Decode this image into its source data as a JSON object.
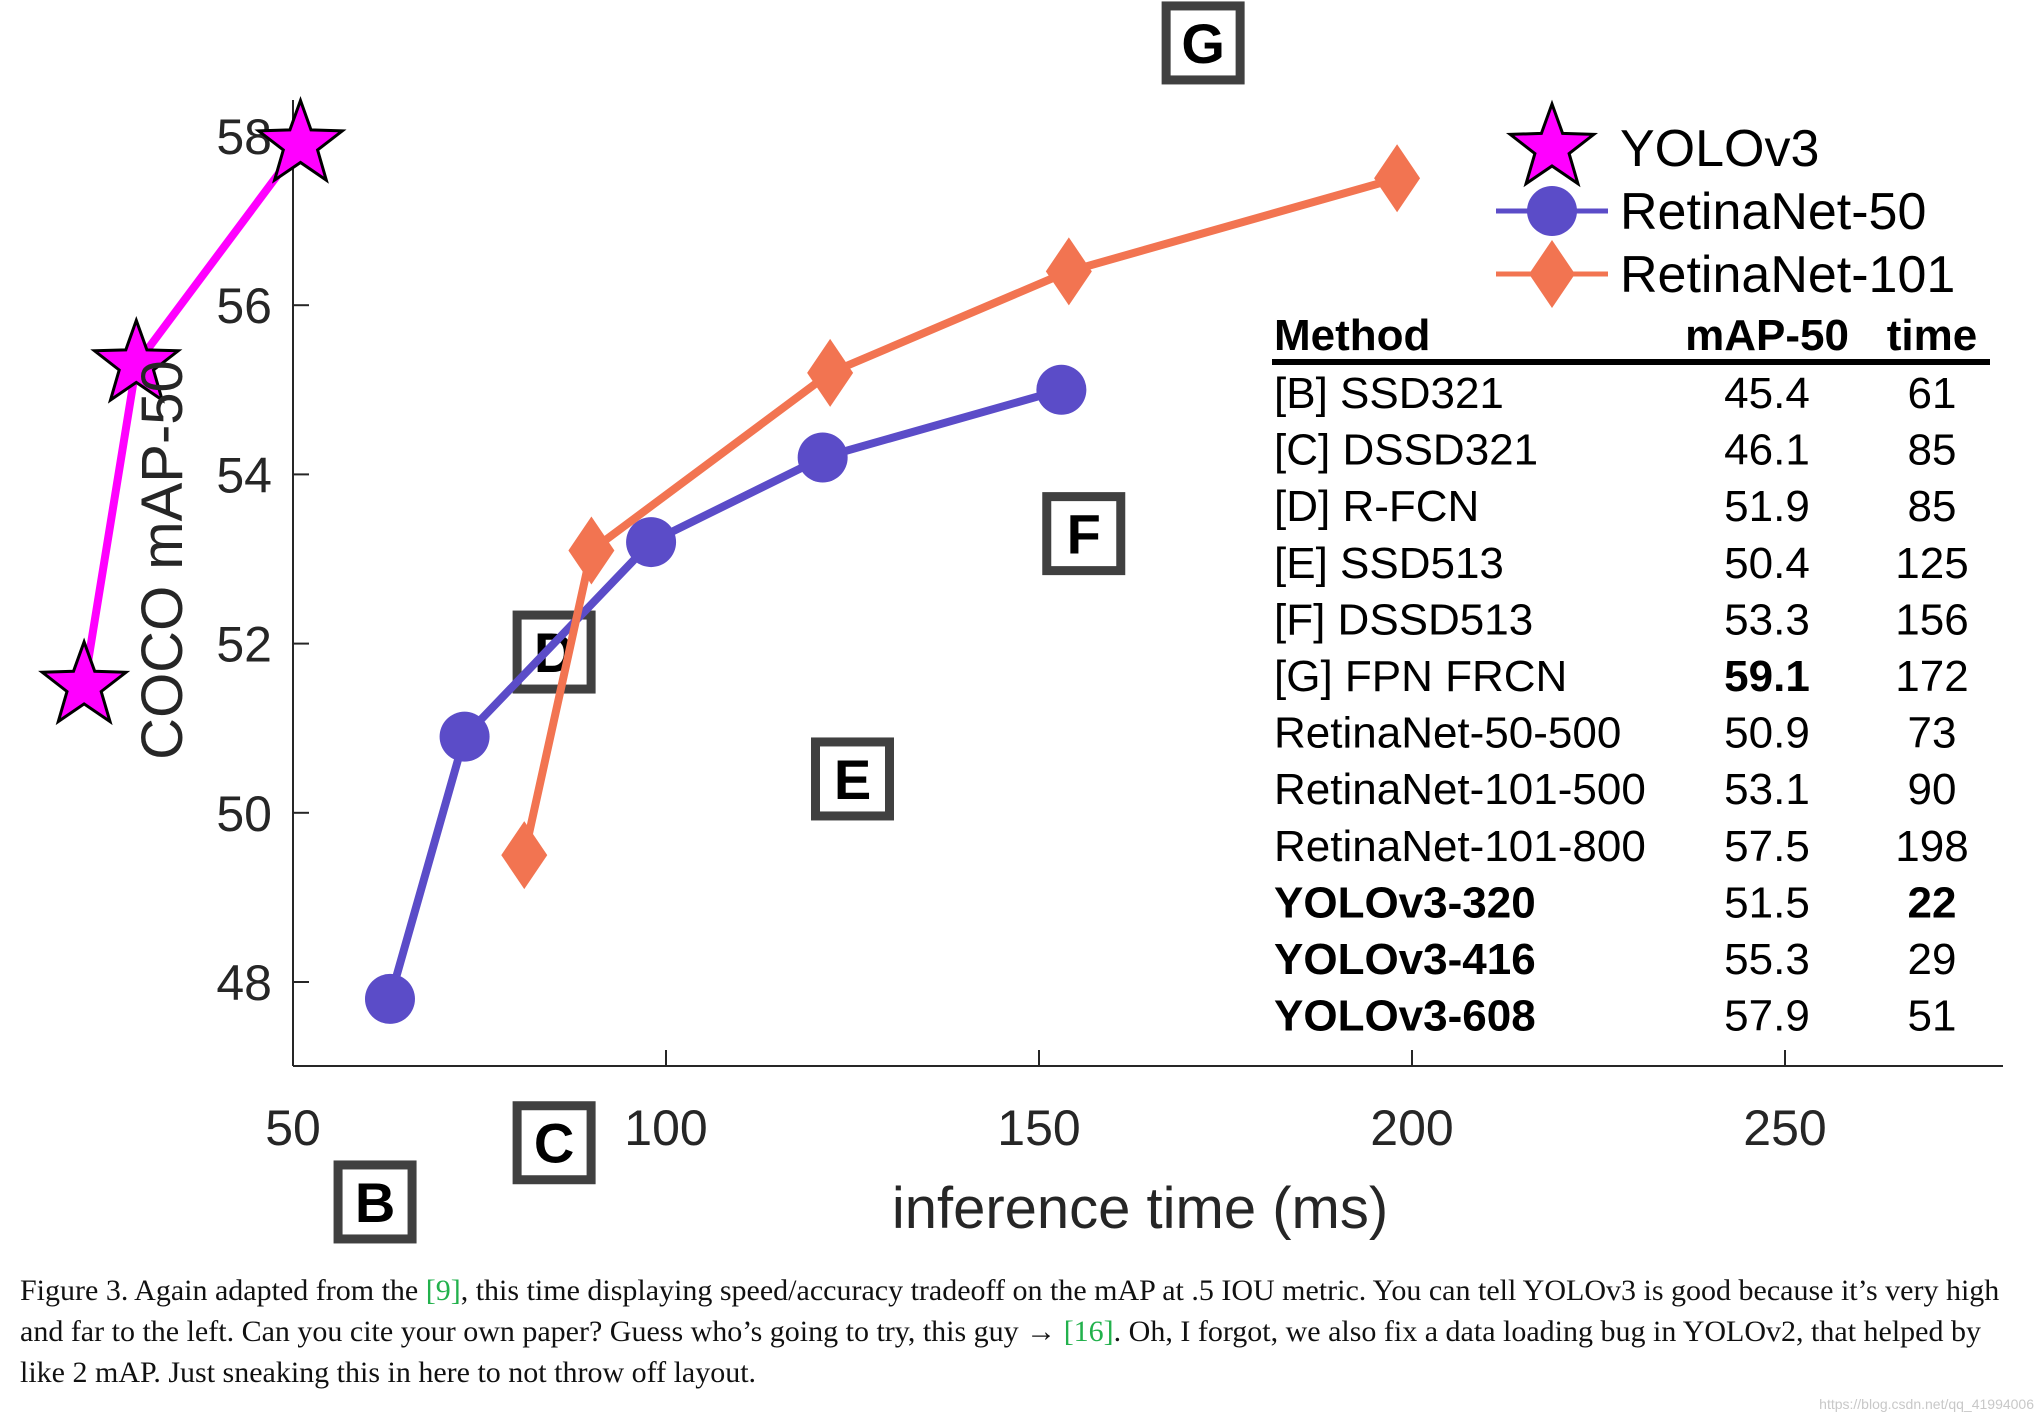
{
  "chart_data": {
    "type": "line",
    "xlabel": "inference time (ms)",
    "ylabel": "COCO mAP-50",
    "xlim": [
      50,
      280
    ],
    "ylim": [
      47,
      59
    ],
    "xticks": [
      50,
      100,
      150,
      200,
      250
    ],
    "yticks": [
      48,
      50,
      52,
      54,
      56,
      58
    ],
    "grid": false,
    "legend_position": "top-right",
    "series": [
      {
        "name": "YOLOv3",
        "marker": "star",
        "color": "#ff00ff",
        "points": [
          {
            "x": 22,
            "y": 51.5
          },
          {
            "x": 29,
            "y": 55.3
          },
          {
            "x": 51,
            "y": 57.9
          }
        ]
      },
      {
        "name": "RetinaNet-50",
        "marker": "circle",
        "color": "#5b4cc8",
        "points": [
          {
            "x": 63,
            "y": 47.8
          },
          {
            "x": 73,
            "y": 50.9
          },
          {
            "x": 98,
            "y": 53.2
          },
          {
            "x": 121,
            "y": 54.2
          },
          {
            "x": 153,
            "y": 55.0
          }
        ]
      },
      {
        "name": "RetinaNet-101",
        "marker": "diamond",
        "color": "#f27451",
        "points": [
          {
            "x": 81,
            "y": 49.5
          },
          {
            "x": 90,
            "y": 53.1
          },
          {
            "x": 122,
            "y": 55.2
          },
          {
            "x": 154,
            "y": 56.4
          },
          {
            "x": 198,
            "y": 57.5
          }
        ]
      }
    ],
    "box_markers": [
      {
        "label": "B",
        "x": 61,
        "y": 45.4
      },
      {
        "label": "C",
        "x": 85,
        "y": 46.1
      },
      {
        "label": "D",
        "x": 85,
        "y": 51.9
      },
      {
        "label": "E",
        "x": 125,
        "y": 50.4
      },
      {
        "label": "F",
        "x": 156,
        "y": 53.3
      },
      {
        "label": "G",
        "x": 172,
        "y": 59.1
      }
    ],
    "table": {
      "headers": [
        "Method",
        "mAP-50",
        "time"
      ],
      "rows": [
        {
          "method": "[B] SSD321",
          "map": "45.4",
          "time": "61",
          "bold_method": false,
          "bold_map": false,
          "bold_time": false
        },
        {
          "method": "[C] DSSD321",
          "map": "46.1",
          "time": "85",
          "bold_method": false,
          "bold_map": false,
          "bold_time": false
        },
        {
          "method": "[D] R-FCN",
          "map": "51.9",
          "time": "85",
          "bold_method": false,
          "bold_map": false,
          "bold_time": false
        },
        {
          "method": "[E] SSD513",
          "map": "50.4",
          "time": "125",
          "bold_method": false,
          "bold_map": false,
          "bold_time": false
        },
        {
          "method": "[F] DSSD513",
          "map": "53.3",
          "time": "156",
          "bold_method": false,
          "bold_map": false,
          "bold_time": false
        },
        {
          "method": "[G] FPN FRCN",
          "map": "59.1",
          "time": "172",
          "bold_method": false,
          "bold_map": true,
          "bold_time": false
        },
        {
          "method": "RetinaNet-50-500",
          "map": "50.9",
          "time": "73",
          "bold_method": false,
          "bold_map": false,
          "bold_time": false
        },
        {
          "method": "RetinaNet-101-500",
          "map": "53.1",
          "time": "90",
          "bold_method": false,
          "bold_map": false,
          "bold_time": false
        },
        {
          "method": "RetinaNet-101-800",
          "map": "57.5",
          "time": "198",
          "bold_method": false,
          "bold_map": false,
          "bold_time": false
        },
        {
          "method": "YOLOv3-320",
          "map": "51.5",
          "time": "22",
          "bold_method": true,
          "bold_map": false,
          "bold_time": true
        },
        {
          "method": "YOLOv3-416",
          "map": "55.3",
          "time": "29",
          "bold_method": true,
          "bold_map": false,
          "bold_time": false
        },
        {
          "method": "YOLOv3-608",
          "map": "57.9",
          "time": "51",
          "bold_method": true,
          "bold_map": false,
          "bold_time": false
        }
      ]
    }
  },
  "caption": {
    "part1": "Figure 3. Again adapted from the ",
    "ref1": "[9]",
    "part2": ", this time displaying speed/accuracy tradeoff on the mAP at .5 IOU metric. You can tell YOLOv3 is good because it’s very high and far to the left. Can you cite your own paper? Guess who’s going to try, this guy → ",
    "ref2": "[16]",
    "part3": ". Oh, I forgot, we also fix a data loading bug in YOLOv2, that helped by like 2 mAP. Just sneaking this in here to not throw off layout."
  },
  "watermark": "https://blog.csdn.net/qq_41994006"
}
